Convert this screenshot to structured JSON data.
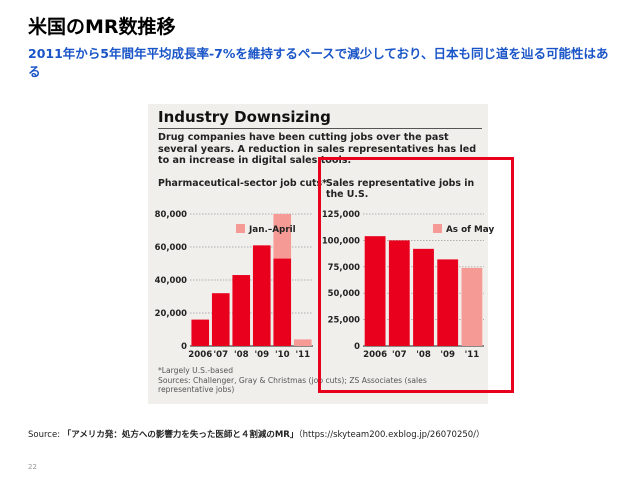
{
  "slide": {
    "title": "米国のMR数推移",
    "subtitle": "2011年から5年間年平均成長率-7%を維持するペースで減少しており、日本も同じ道を辿る可能性はある",
    "source_prefix": "Source: ",
    "source_title": "「アメリカ発：処方への影響力を失った医師と４割減のMR」",
    "source_url": "（https://skyteam200.exblog.jp/26070250/）",
    "page_number": "22"
  },
  "figure": {
    "title": "Industry Downsizing",
    "description": "Drug companies have been cutting jobs over the past several years. A reduction in sales representatives has led to an increase in digital sales tools.",
    "footnote": "*Largely U.S.-based",
    "sources": "Sources: Challenger, Gray & Christmas (job cuts); ZS Associates (sales representative jobs)"
  },
  "chart_data": [
    {
      "type": "bar",
      "title": "Pharmaceutical-sector job cuts*",
      "categories": [
        "2006",
        "'07",
        "'08",
        "'09",
        "'10",
        "'11"
      ],
      "series": [
        {
          "name": "",
          "values": [
            16000,
            32000,
            43000,
            61000,
            53000,
            0
          ],
          "color": "#e8001c"
        },
        {
          "name": "Jan.–April",
          "values": [
            0,
            0,
            0,
            0,
            27000,
            4000
          ],
          "color": "#f59a94"
        }
      ],
      "yticks": [
        "0",
        "20,000",
        "40,000",
        "60,000",
        "80,000"
      ],
      "ylim": [
        0,
        80000
      ],
      "legend": "top-right",
      "grid": true
    },
    {
      "type": "bar",
      "title": "Sales representative jobs in the U.S.",
      "categories": [
        "2006",
        "'07",
        "'08",
        "'09",
        "'11"
      ],
      "values": [
        104000,
        100000,
        92000,
        82000,
        74000
      ],
      "colors": [
        "#e8001c",
        "#e8001c",
        "#e8001c",
        "#e8001c",
        "#f59a94"
      ],
      "legend_label": "As of May",
      "yticks": [
        "0",
        "25,000",
        "50,000",
        "75,000",
        "100,000",
        "125,000"
      ],
      "ylim": [
        0,
        125000
      ],
      "legend": "top-right",
      "grid": true
    }
  ],
  "colors": {
    "accent": "#e8001c",
    "light": "#f59a94",
    "subtitle": "#1a55c8"
  }
}
